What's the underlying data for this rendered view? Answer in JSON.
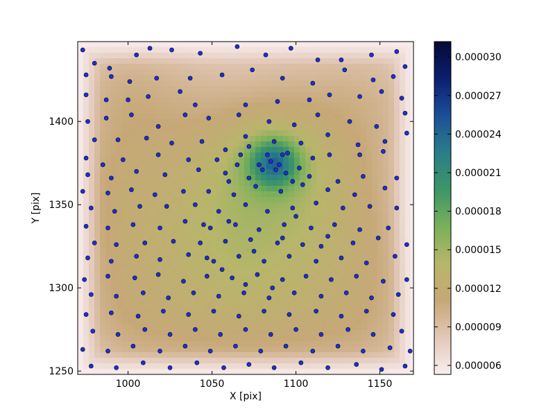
{
  "chart_data": {
    "type": "scatter",
    "title": "",
    "xlabel": "X [pix]",
    "ylabel": "Y [pix]",
    "xlim": [
      970,
      1170
    ],
    "ylim": [
      1248,
      1448
    ],
    "xticks": [
      1000,
      1050,
      1100,
      1150
    ],
    "yticks": [
      1250,
      1300,
      1350,
      1400
    ],
    "grid": false,
    "background": "density heatmap (gist_earth_r style colormap), densest near x≈1087, y≈1375",
    "colorbar": {
      "ticks": [
        "0.000006",
        "0.000009",
        "0.000012",
        "0.000015",
        "0.000018",
        "0.000021",
        "0.000024",
        "0.000027",
        "0.000030"
      ],
      "range": [
        5.3e-06,
        3.12e-05
      ],
      "colors": [
        "#f8eeee",
        "#e2c8b8",
        "#c6a877",
        "#b7b66a",
        "#7ab05a",
        "#3d9566",
        "#2a7e88",
        "#1c4f99",
        "#0b1f70",
        "#050a35"
      ]
    },
    "point_color": "#1f2fd1",
    "point_edge": "#0a0a40",
    "points": [
      [
        973,
        1443
      ],
      [
        980,
        1435
      ],
      [
        989,
        1432
      ],
      [
        1005,
        1440
      ],
      [
        1013,
        1444
      ],
      [
        1026,
        1443
      ],
      [
        1043,
        1441
      ],
      [
        1065,
        1445
      ],
      [
        1082,
        1440
      ],
      [
        1097,
        1444
      ],
      [
        1113,
        1437
      ],
      [
        1127,
        1437
      ],
      [
        1145,
        1440
      ],
      [
        1160,
        1442
      ],
      [
        1165,
        1433
      ],
      [
        975,
        1428
      ],
      [
        990,
        1427
      ],
      [
        1001,
        1424
      ],
      [
        1017,
        1426
      ],
      [
        1037,
        1426
      ],
      [
        1056,
        1428
      ],
      [
        1074,
        1431
      ],
      [
        1092,
        1426
      ],
      [
        1110,
        1423
      ],
      [
        1129,
        1431
      ],
      [
        1146,
        1425
      ],
      [
        1158,
        1427
      ],
      [
        975,
        1416
      ],
      [
        987,
        1413
      ],
      [
        1000,
        1413
      ],
      [
        1012,
        1415
      ],
      [
        1031,
        1418
      ],
      [
        1040,
        1410
      ],
      [
        1070,
        1410
      ],
      [
        1089,
        1412
      ],
      [
        1108,
        1413
      ],
      [
        1120,
        1416
      ],
      [
        1138,
        1415
      ],
      [
        1151,
        1418
      ],
      [
        1163,
        1414
      ],
      [
        976,
        1400
      ],
      [
        987,
        1402
      ],
      [
        1002,
        1404
      ],
      [
        1018,
        1397
      ],
      [
        1034,
        1404
      ],
      [
        1048,
        1402
      ],
      [
        1066,
        1404
      ],
      [
        1084,
        1400
      ],
      [
        1099,
        1398
      ],
      [
        1113,
        1404
      ],
      [
        1132,
        1400
      ],
      [
        1148,
        1397
      ],
      [
        1165,
        1405
      ],
      [
        980,
        1389
      ],
      [
        994,
        1389
      ],
      [
        1011,
        1390
      ],
      [
        1026,
        1387
      ],
      [
        1044,
        1388
      ],
      [
        1058,
        1383
      ],
      [
        1070,
        1391
      ],
      [
        1087,
        1388
      ],
      [
        1103,
        1387
      ],
      [
        1119,
        1392
      ],
      [
        1137,
        1386
      ],
      [
        1153,
        1388
      ],
      [
        1166,
        1393
      ],
      [
        975,
        1378
      ],
      [
        985,
        1374
      ],
      [
        997,
        1377
      ],
      [
        1018,
        1380
      ],
      [
        1036,
        1377
      ],
      [
        1053,
        1377
      ],
      [
        1067,
        1380
      ],
      [
        1078,
        1374
      ],
      [
        1092,
        1380
      ],
      [
        1102,
        1372
      ],
      [
        1120,
        1380
      ],
      [
        1138,
        1380
      ],
      [
        1152,
        1382
      ],
      [
        976,
        1368
      ],
      [
        990,
        1366
      ],
      [
        1005,
        1370
      ],
      [
        1022,
        1368
      ],
      [
        1042,
        1371
      ],
      [
        1058,
        1369
      ],
      [
        1072,
        1366
      ],
      [
        1080,
        1371
      ],
      [
        1094,
        1369
      ],
      [
        1108,
        1367
      ],
      [
        1125,
        1364
      ],
      [
        1140,
        1367
      ],
      [
        1160,
        1366
      ],
      [
        973,
        1358
      ],
      [
        988,
        1357
      ],
      [
        1002,
        1359
      ],
      [
        1016,
        1356
      ],
      [
        1033,
        1358
      ],
      [
        1048,
        1358
      ],
      [
        1063,
        1356
      ],
      [
        1076,
        1361
      ],
      [
        1091,
        1358
      ],
      [
        1104,
        1362
      ],
      [
        1119,
        1359
      ],
      [
        1135,
        1356
      ],
      [
        1153,
        1360
      ],
      [
        978,
        1348
      ],
      [
        992,
        1346
      ],
      [
        1007,
        1349
      ],
      [
        1023,
        1349
      ],
      [
        1040,
        1350
      ],
      [
        1054,
        1346
      ],
      [
        1070,
        1350
      ],
      [
        1083,
        1346
      ],
      [
        1098,
        1348
      ],
      [
        1112,
        1351
      ],
      [
        1128,
        1348
      ],
      [
        1144,
        1349
      ],
      [
        1160,
        1348
      ],
      [
        975,
        1337
      ],
      [
        988,
        1336
      ],
      [
        1003,
        1338
      ],
      [
        1019,
        1336
      ],
      [
        1034,
        1340
      ],
      [
        1049,
        1336
      ],
      [
        1064,
        1338
      ],
      [
        1078,
        1335
      ],
      [
        1093,
        1338
      ],
      [
        1109,
        1336
      ],
      [
        1123,
        1338
      ],
      [
        1138,
        1335
      ],
      [
        1155,
        1336
      ],
      [
        980,
        1327
      ],
      [
        993,
        1326
      ],
      [
        1010,
        1327
      ],
      [
        1027,
        1328
      ],
      [
        1043,
        1327
      ],
      [
        1058,
        1328
      ],
      [
        1073,
        1329
      ],
      [
        1089,
        1327
      ],
      [
        1104,
        1326
      ],
      [
        1119,
        1331
      ],
      [
        1134,
        1327
      ],
      [
        1149,
        1330
      ],
      [
        1166,
        1326
      ],
      [
        976,
        1318
      ],
      [
        990,
        1316
      ],
      [
        1005,
        1319
      ],
      [
        1019,
        1317
      ],
      [
        1036,
        1320
      ],
      [
        1051,
        1316
      ],
      [
        1066,
        1319
      ],
      [
        1081,
        1316
      ],
      [
        1096,
        1319
      ],
      [
        1112,
        1316
      ],
      [
        1127,
        1318
      ],
      [
        1142,
        1315
      ],
      [
        1159,
        1319
      ],
      [
        974,
        1305
      ],
      [
        988,
        1307
      ],
      [
        1004,
        1306
      ],
      [
        1018,
        1308
      ],
      [
        1033,
        1304
      ],
      [
        1047,
        1307
      ],
      [
        1062,
        1306
      ],
      [
        1077,
        1308
      ],
      [
        1092,
        1305
      ],
      [
        1106,
        1307
      ],
      [
        1121,
        1305
      ],
      [
        1136,
        1307
      ],
      [
        1152,
        1304
      ],
      [
        1166,
        1305
      ],
      [
        978,
        1296
      ],
      [
        993,
        1295
      ],
      [
        1009,
        1297
      ],
      [
        1024,
        1294
      ],
      [
        1039,
        1297
      ],
      [
        1054,
        1295
      ],
      [
        1069,
        1297
      ],
      [
        1084,
        1294
      ],
      [
        1099,
        1297
      ],
      [
        1115,
        1295
      ],
      [
        1130,
        1297
      ],
      [
        1145,
        1294
      ],
      [
        1161,
        1296
      ],
      [
        975,
        1284
      ],
      [
        990,
        1285
      ],
      [
        1006,
        1283
      ],
      [
        1021,
        1286
      ],
      [
        1036,
        1284
      ],
      [
        1051,
        1286
      ],
      [
        1066,
        1283
      ],
      [
        1081,
        1286
      ],
      [
        1096,
        1284
      ],
      [
        1112,
        1286
      ],
      [
        1127,
        1283
      ],
      [
        1142,
        1286
      ],
      [
        1158,
        1284
      ],
      [
        979,
        1274
      ],
      [
        994,
        1272
      ],
      [
        1010,
        1275
      ],
      [
        1025,
        1272
      ],
      [
        1040,
        1275
      ],
      [
        1055,
        1272
      ],
      [
        1070,
        1275
      ],
      [
        1085,
        1272
      ],
      [
        1100,
        1275
      ],
      [
        1115,
        1272
      ],
      [
        1131,
        1275
      ],
      [
        1146,
        1272
      ],
      [
        1163,
        1274
      ],
      [
        973,
        1263
      ],
      [
        988,
        1262
      ],
      [
        1003,
        1265
      ],
      [
        1019,
        1262
      ],
      [
        1034,
        1265
      ],
      [
        1049,
        1262
      ],
      [
        1064,
        1265
      ],
      [
        1079,
        1262
      ],
      [
        1094,
        1265
      ],
      [
        1110,
        1262
      ],
      [
        1125,
        1265
      ],
      [
        1140,
        1262
      ],
      [
        1156,
        1264
      ],
      [
        1168,
        1262
      ],
      [
        978,
        1253
      ],
      [
        993,
        1252
      ],
      [
        1009,
        1255
      ],
      [
        1025,
        1252
      ],
      [
        1041,
        1255
      ],
      [
        1057,
        1252
      ],
      [
        1072,
        1254
      ],
      [
        1087,
        1252
      ],
      [
        1103,
        1255
      ],
      [
        1119,
        1252
      ],
      [
        1136,
        1254
      ],
      [
        1151,
        1251
      ],
      [
        1165,
        1253
      ],
      [
        1085,
        1376
      ],
      [
        1090,
        1374
      ],
      [
        1088,
        1371
      ],
      [
        1083,
        1380
      ],
      [
        1095,
        1381
      ],
      [
        1072,
        1385
      ],
      [
        1065,
        1374
      ],
      [
        1060,
        1364
      ],
      [
        1098,
        1364
      ],
      [
        1110,
        1378
      ],
      [
        1047,
        1318
      ],
      [
        1056,
        1311
      ],
      [
        1070,
        1302
      ],
      [
        1086,
        1300
      ],
      [
        1075,
        1322
      ],
      [
        1092,
        1330
      ],
      [
        1060,
        1340
      ],
      [
        1100,
        1343
      ],
      [
        1115,
        1325
      ],
      [
        1045,
        1338
      ]
    ]
  }
}
